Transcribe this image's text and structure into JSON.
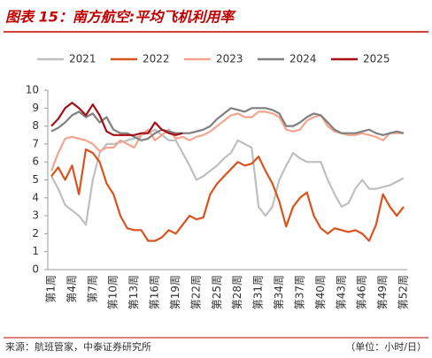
{
  "chart_data": {
    "type": "line",
    "title": "图表 15：南方航空:平均飞机利用率",
    "source": "来源：航班管家，中泰证券研究所",
    "unit": "（单位：小时/日）",
    "categories": [
      "第1周",
      null,
      null,
      "第4周",
      null,
      null,
      "第7周",
      null,
      null,
      "第10周",
      null,
      null,
      "第13周",
      null,
      null,
      "第16周",
      null,
      null,
      "第19周",
      null,
      null,
      "第22周",
      null,
      null,
      "第25周",
      null,
      null,
      "第28周",
      null,
      null,
      "第31周",
      null,
      null,
      "第34周",
      null,
      null,
      "第37周",
      null,
      null,
      "第40周",
      null,
      null,
      "第43周",
      null,
      null,
      "第46周",
      null,
      null,
      "第49周",
      null,
      null,
      "第52周"
    ],
    "ylim": [
      0,
      10
    ],
    "yticks": [
      0,
      1,
      2,
      3,
      4,
      5,
      6,
      7,
      8,
      9,
      10
    ],
    "legend": "top",
    "series": [
      {
        "name": "2021",
        "color": "#bfbfbf",
        "values": [
          5.2,
          4.5,
          3.6,
          3.3,
          3.0,
          2.5,
          5.0,
          6.5,
          7.0,
          7.0,
          7.1,
          7.2,
          7.3,
          7.5,
          7.6,
          7.8,
          7.5,
          7.2,
          7.2,
          6.5,
          5.8,
          5.0,
          5.2,
          5.5,
          5.8,
          6.2,
          6.5,
          7.2,
          7.0,
          6.8,
          3.5,
          3.0,
          3.5,
          5.0,
          5.8,
          6.5,
          6.2,
          6.0,
          6.0,
          6.0,
          5.0,
          4.2,
          3.5,
          3.7,
          4.5,
          5.0,
          4.5,
          4.5,
          4.6,
          4.7,
          4.9,
          5.1
        ]
      },
      {
        "name": "2022",
        "color": "#d9531e",
        "values": [
          5.2,
          5.7,
          5.0,
          5.8,
          4.2,
          6.7,
          6.5,
          6.0,
          4.8,
          4.2,
          3.0,
          2.3,
          2.2,
          2.2,
          1.6,
          1.6,
          1.8,
          2.2,
          2.0,
          2.5,
          3.0,
          2.8,
          2.9,
          4.2,
          4.8,
          5.2,
          5.6,
          6.0,
          5.8,
          5.9,
          6.3,
          5.5,
          4.8,
          3.8,
          2.4,
          3.5,
          4.0,
          4.3,
          3.0,
          2.3,
          2.0,
          2.3,
          2.2,
          2.1,
          2.2,
          2.0,
          1.6,
          2.5,
          4.2,
          3.5,
          3.0,
          3.5
        ]
      },
      {
        "name": "2023",
        "color": "#f4a58c",
        "values": [
          5.5,
          6.5,
          7.3,
          7.4,
          7.3,
          7.2,
          7.0,
          6.6,
          6.8,
          6.8,
          7.2,
          7.0,
          6.8,
          7.5,
          7.8,
          7.2,
          7.5,
          7.8,
          7.3,
          7.4,
          7.2,
          7.4,
          7.5,
          7.7,
          8.0,
          8.3,
          8.6,
          8.7,
          8.5,
          8.5,
          8.8,
          8.8,
          8.7,
          8.5,
          7.8,
          7.7,
          7.8,
          8.3,
          8.5,
          8.6,
          8.0,
          7.7,
          7.6,
          7.5,
          7.5,
          7.6,
          7.5,
          7.4,
          7.2,
          7.6,
          7.6,
          7.6
        ]
      },
      {
        "name": "2024",
        "color": "#7f7f7f",
        "values": [
          7.7,
          7.9,
          8.2,
          8.6,
          8.8,
          8.5,
          8.7,
          8.2,
          8.5,
          7.8,
          7.6,
          7.6,
          7.4,
          7.2,
          7.3,
          7.6,
          7.8,
          7.7,
          7.6,
          7.6,
          7.6,
          7.7,
          7.8,
          8.0,
          8.4,
          8.7,
          9.0,
          8.9,
          8.8,
          9.0,
          9.0,
          9.0,
          8.9,
          8.7,
          8.0,
          8.0,
          8.2,
          8.5,
          8.7,
          8.6,
          8.2,
          7.8,
          7.6,
          7.6,
          7.6,
          7.7,
          7.8,
          7.6,
          7.5,
          7.6,
          7.7,
          7.6
        ]
      },
      {
        "name": "2025",
        "color": "#a50f15",
        "values": [
          8.0,
          8.4,
          9.0,
          9.3,
          9.0,
          8.6,
          9.2,
          8.6,
          7.7,
          7.5,
          7.5,
          7.5,
          7.5,
          7.6,
          7.6,
          8.2,
          7.8,
          7.6,
          7.5,
          7.6,
          null,
          null,
          null,
          null,
          null,
          null,
          null,
          null,
          null,
          null,
          null,
          null,
          null,
          null,
          null,
          null,
          null,
          null,
          null,
          null,
          null,
          null,
          null,
          null,
          null,
          null,
          null,
          null,
          null,
          null,
          null,
          null
        ]
      }
    ]
  }
}
